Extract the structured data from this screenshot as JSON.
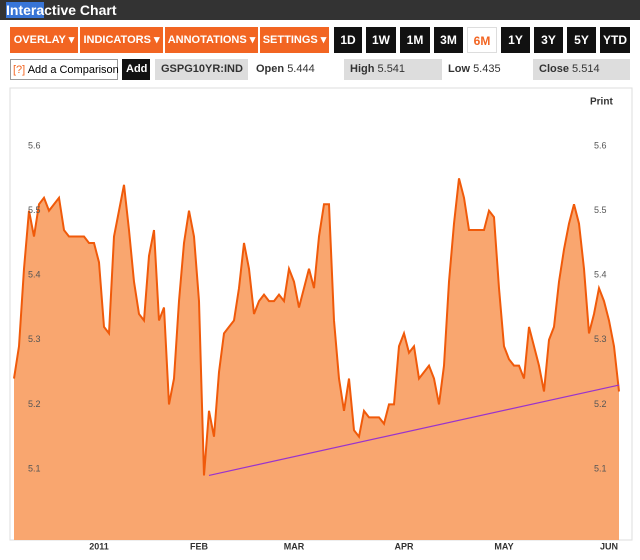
{
  "header": {
    "title_selected": "Intera",
    "title_rest": "ctive Chart"
  },
  "toolbar": {
    "menus": [
      "OVERLAY ▾",
      "INDICATORS ▾",
      "ANNOTATIONS ▾",
      "SETTINGS ▾"
    ],
    "ranges": [
      "1D",
      "1W",
      "1M",
      "3M",
      "6M",
      "1Y",
      "3Y",
      "5Y",
      "YTD"
    ],
    "active_range": "6M"
  },
  "quote_bar": {
    "help": "[?]",
    "comparison_placeholder": "Add a Comparison",
    "add_button": "Add",
    "symbol": "GSPG10YR:IND",
    "fields": [
      {
        "label": "Open",
        "value": 5.444
      },
      {
        "label": "High",
        "value": 5.541
      },
      {
        "label": "Low",
        "value": 5.435
      },
      {
        "label": "Close",
        "value": 5.514
      }
    ]
  },
  "print": "Print",
  "chart_data": {
    "type": "area",
    "color": "#f05a0a",
    "fill": "#f9a66f",
    "categories": [
      null,
      null,
      null,
      null,
      null,
      null,
      null,
      null,
      null,
      null,
      null,
      null,
      null,
      null,
      null,
      null,
      null,
      "2011",
      null,
      null,
      null,
      null,
      null,
      null,
      null,
      null,
      null,
      null,
      null,
      null,
      null,
      null,
      null,
      null,
      null,
      null,
      null,
      "FEB",
      null,
      null,
      null,
      null,
      null,
      null,
      null,
      null,
      null,
      null,
      null,
      null,
      null,
      null,
      null,
      null,
      null,
      null,
      "MAR",
      null,
      null,
      null,
      null,
      null,
      null,
      null,
      null,
      null,
      null,
      null,
      null,
      null,
      null,
      null,
      null,
      null,
      null,
      null,
      null,
      null,
      "APR",
      null,
      null,
      null,
      null,
      null,
      null,
      null,
      null,
      null,
      null,
      null,
      null,
      null,
      null,
      null,
      null,
      null,
      null,
      null,
      "MAY",
      null,
      null,
      null,
      null,
      null,
      null,
      null,
      null,
      null,
      null,
      null,
      null,
      null,
      null,
      null,
      null,
      null,
      null,
      null,
      null,
      "JUN",
      null,
      null
    ],
    "values": [
      5.24,
      5.29,
      5.41,
      5.5,
      5.46,
      5.51,
      5.52,
      5.5,
      5.51,
      5.52,
      5.47,
      5.46,
      5.46,
      5.46,
      5.46,
      5.45,
      5.45,
      5.42,
      5.32,
      5.31,
      5.46,
      5.5,
      5.54,
      5.47,
      5.39,
      5.34,
      5.33,
      5.43,
      5.47,
      5.33,
      5.35,
      5.2,
      5.24,
      5.36,
      5.45,
      5.5,
      5.46,
      5.36,
      5.09,
      5.19,
      5.15,
      5.25,
      5.31,
      5.32,
      5.33,
      5.38,
      5.45,
      5.41,
      5.34,
      5.36,
      5.37,
      5.36,
      5.36,
      5.37,
      5.36,
      5.41,
      5.39,
      5.35,
      5.38,
      5.41,
      5.38,
      5.46,
      5.51,
      5.51,
      5.33,
      5.24,
      5.19,
      5.24,
      5.16,
      5.15,
      5.19,
      5.18,
      5.18,
      5.18,
      5.17,
      5.2,
      5.2,
      5.29,
      5.31,
      5.28,
      5.29,
      5.24,
      5.25,
      5.26,
      5.24,
      5.2,
      5.26,
      5.39,
      5.48,
      5.55,
      5.52,
      5.47,
      5.47,
      5.47,
      5.47,
      5.5,
      5.49,
      5.38,
      5.29,
      5.27,
      5.26,
      5.26,
      5.24,
      5.32,
      5.29,
      5.26,
      5.22,
      5.3,
      5.32,
      5.39,
      5.44,
      5.48,
      5.51,
      5.48,
      5.41,
      5.31,
      5.34,
      5.38,
      5.36,
      5.33,
      5.29,
      5.22
    ],
    "trendline": {
      "color": "#9933cc",
      "start": 39,
      "end": 121,
      "values": [
        5.09,
        5.23
      ]
    },
    "ylim": [
      4.99,
      5.69
    ],
    "yticks": [
      5.1,
      5.2,
      5.3,
      5.4,
      5.5,
      5.6
    ],
    "grid": false
  }
}
